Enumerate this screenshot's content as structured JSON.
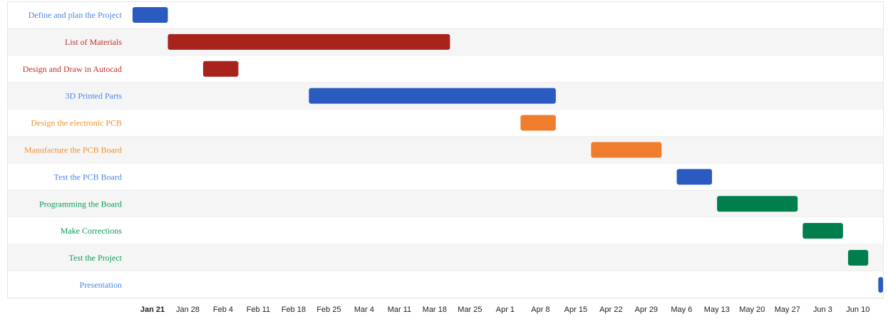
{
  "chart_data": {
    "type": "gantt",
    "title": "",
    "x_axis": {
      "min": "2019-01-21",
      "max": "2019-06-16",
      "ticks": [
        {
          "label": "Jan 21",
          "date": "2019-01-21",
          "bold": true
        },
        {
          "label": "Jan 28",
          "date": "2019-01-28"
        },
        {
          "label": "Feb 4",
          "date": "2019-02-04"
        },
        {
          "label": "Feb 11",
          "date": "2019-02-11"
        },
        {
          "label": "Feb 18",
          "date": "2019-02-18"
        },
        {
          "label": "Feb 25",
          "date": "2019-02-25"
        },
        {
          "label": "Mar 4",
          "date": "2019-03-04"
        },
        {
          "label": "Mar 11",
          "date": "2019-03-11"
        },
        {
          "label": "Mar 18",
          "date": "2019-03-18"
        },
        {
          "label": "Mar 25",
          "date": "2019-03-25"
        },
        {
          "label": "Apr 1",
          "date": "2019-04-01"
        },
        {
          "label": "Apr 8",
          "date": "2019-04-08"
        },
        {
          "label": "Apr 15",
          "date": "2019-04-15"
        },
        {
          "label": "Apr 22",
          "date": "2019-04-22"
        },
        {
          "label": "Apr 29",
          "date": "2019-04-29"
        },
        {
          "label": "May 6",
          "date": "2019-05-06"
        },
        {
          "label": "May 13",
          "date": "2019-05-13"
        },
        {
          "label": "May 20",
          "date": "2019-05-20"
        },
        {
          "label": "May 27",
          "date": "2019-05-27"
        },
        {
          "label": "Jun 3",
          "date": "2019-06-03"
        },
        {
          "label": "Jun 10",
          "date": "2019-06-10"
        }
      ]
    },
    "grid": false,
    "row_banding": true,
    "tasks": [
      {
        "label": "Define and plan the Project",
        "start": "2019-01-21",
        "end": "2019-01-28",
        "color": "#2a5bc0",
        "label_color": "#4a86e8"
      },
      {
        "label": "List of Materials",
        "start": "2019-01-28",
        "end": "2019-03-25",
        "color": "#a8231c",
        "label_color": "#c0302a"
      },
      {
        "label": "Design and Draw in Autocad",
        "start": "2019-02-04",
        "end": "2019-02-11",
        "color": "#a8231c",
        "label_color": "#c0302a"
      },
      {
        "label": "3D Printed Parts",
        "start": "2019-02-25",
        "end": "2019-04-15",
        "color": "#2a5bc0",
        "label_color": "#4a86e8"
      },
      {
        "label": "Design the electronic PCB",
        "start": "2019-04-08",
        "end": "2019-04-15",
        "color": "#f07d2e",
        "label_color": "#f0912e"
      },
      {
        "label": "Manufacture the PCB Board",
        "start": "2019-04-22",
        "end": "2019-05-06",
        "color": "#f07d2e",
        "label_color": "#f0912e"
      },
      {
        "label": "Test the PCB Board",
        "start": "2019-05-09",
        "end": "2019-05-16",
        "color": "#2a5bc0",
        "label_color": "#4a86e8"
      },
      {
        "label": "Programming the Board",
        "start": "2019-05-17",
        "end": "2019-06-02",
        "color": "#007e4c",
        "label_color": "#0a9d58"
      },
      {
        "label": "Make Corrections",
        "start": "2019-06-03",
        "end": "2019-06-11",
        "color": "#007e4c",
        "label_color": "#0a9d58"
      },
      {
        "label": "Test the Project",
        "start": "2019-06-12",
        "end": "2019-06-16",
        "color": "#007e4c",
        "label_color": "#0a9d58"
      },
      {
        "label": "Presentation",
        "start": "2019-06-18",
        "end": "2019-06-19",
        "color": "#2a5bc0",
        "label_color": "#4a86e8"
      }
    ]
  }
}
